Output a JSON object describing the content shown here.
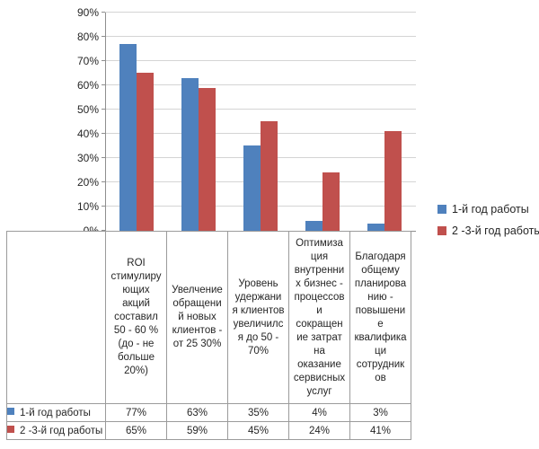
{
  "chart_data": {
    "type": "bar",
    "title": "",
    "xlabel": "",
    "ylabel": "",
    "categories": [
      "ROI\nстимулиру\nющих\nакций\nсоставил\n50 - 60 %\n(до - не\nбольше\n20%)",
      "Увелчение\nобращени\nй новых\nклиентов -\nот 25 30%",
      "Уровень\nудержани\nя клиентов\nувеличилс\nя до 50 -\n70%",
      "Оптимиза\nция\nвнутренни\nх бизнес -\nпроцессов\nи\nсокращен\nие затрат\nна\nоказание\nсервисных\nуслуг",
      "Благодаря\nобщему\nпланирова\nнию -\nповышени\nе\nквалифика\nци\nсотрудник\nов"
    ],
    "series": [
      {
        "name": "1-й год работы",
        "color": "#4F81BD",
        "values": [
          77,
          63,
          35,
          4,
          3
        ]
      },
      {
        "name": "2 -3-й год работы",
        "color": "#C0504D",
        "values": [
          65,
          59,
          45,
          24,
          41
        ]
      }
    ],
    "value_suffix": "%",
    "ylim": [
      0,
      90
    ],
    "ytick_step": 10,
    "ytick_labels": [
      "0%",
      "10%",
      "20%",
      "30%",
      "40%",
      "50%",
      "60%",
      "70%",
      "80%",
      "90%"
    ],
    "grid": true,
    "legend_position": "right",
    "show_data_table": true,
    "colors": {
      "gridline": "#D4D4D4",
      "axis": "#8E8E8E",
      "table_border": "#9B9B9B",
      "text": "#262626"
    }
  }
}
